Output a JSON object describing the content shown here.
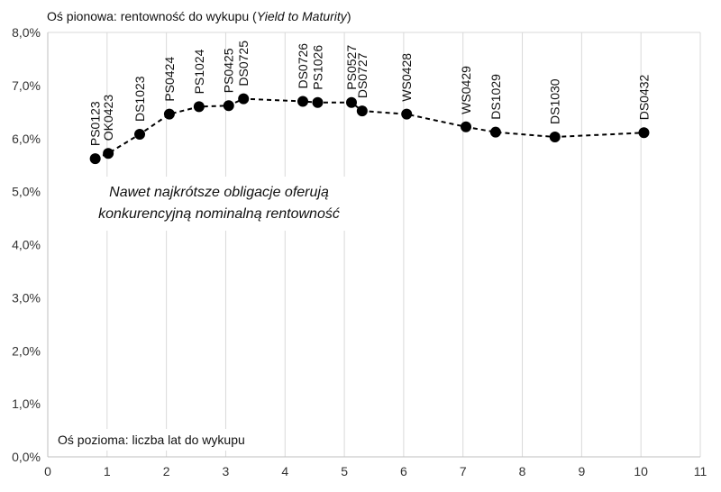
{
  "chart_data": {
    "type": "scatter",
    "title": "",
    "ylabel_prefix": "Oś pionowa: rentowność do wykupu (",
    "ylabel_italic": "Yield to Maturity",
    "ylabel_suffix": ")",
    "xlabel": "Oś pozioma: liczba lat do wykupu",
    "annotation": [
      "Nawet najkrótsze obligacje oferują",
      "konkurencyjną nominalną rentowność"
    ],
    "xlim": [
      0,
      11
    ],
    "ylim": [
      0,
      8
    ],
    "x_ticks": [
      "0",
      "1",
      "2",
      "3",
      "4",
      "5",
      "6",
      "7",
      "8",
      "9",
      "10",
      "11"
    ],
    "y_ticks": [
      "0,0%",
      "1,0%",
      "2,0%",
      "3,0%",
      "4,0%",
      "5,0%",
      "6,0%",
      "7,0%",
      "8,0%"
    ],
    "grid": "vertical",
    "line_style": "dashed",
    "marker_color": "#000000",
    "gridline_color": "#d9d9d9",
    "points": [
      {
        "label": "PS0123",
        "x": 0.8,
        "y": 5.62
      },
      {
        "label": "OK0423",
        "x": 1.02,
        "y": 5.72
      },
      {
        "label": "DS1023",
        "x": 1.55,
        "y": 6.08
      },
      {
        "label": "PS0424",
        "x": 2.05,
        "y": 6.46
      },
      {
        "label": "PS1024",
        "x": 2.55,
        "y": 6.6
      },
      {
        "label": "PS0425",
        "x": 3.05,
        "y": 6.62
      },
      {
        "label": "DS0725",
        "x": 3.3,
        "y": 6.75
      },
      {
        "label": "DS0726",
        "x": 4.3,
        "y": 6.7
      },
      {
        "label": "PS1026",
        "x": 4.55,
        "y": 6.68
      },
      {
        "label": "PS0527",
        "x": 5.12,
        "y": 6.68
      },
      {
        "label": "DS0727",
        "x": 5.3,
        "y": 6.52
      },
      {
        "label": "WS0428",
        "x": 6.05,
        "y": 6.46
      },
      {
        "label": "WS0429",
        "x": 7.05,
        "y": 6.22
      },
      {
        "label": "DS1029",
        "x": 7.55,
        "y": 6.12
      },
      {
        "label": "DS1030",
        "x": 8.55,
        "y": 6.03
      },
      {
        "label": "DS0432",
        "x": 10.05,
        "y": 6.11
      }
    ]
  }
}
